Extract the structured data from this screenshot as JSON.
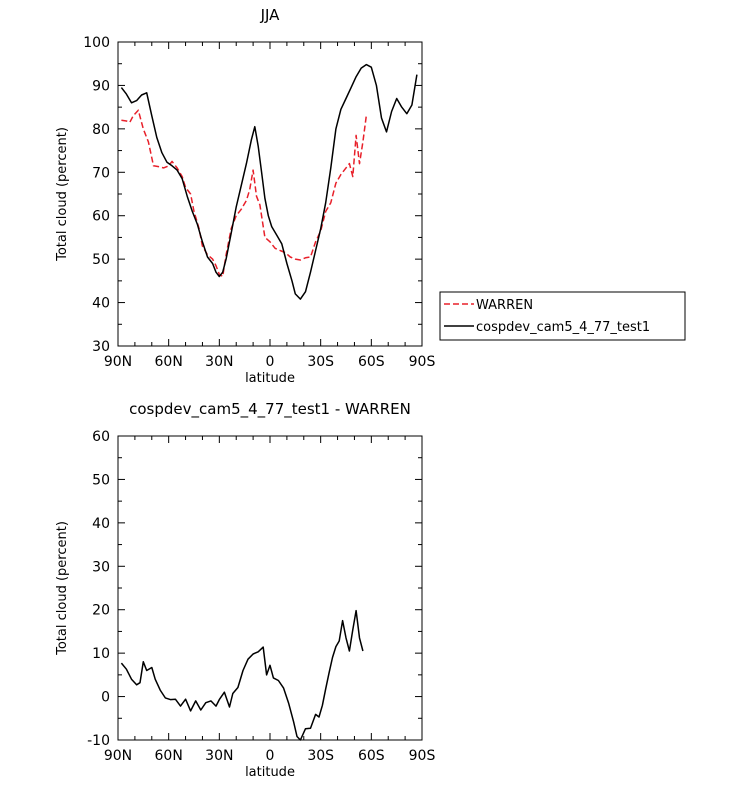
{
  "chart_data": [
    {
      "type": "line",
      "title": "JJA",
      "xlabel": "latitude",
      "ylabel": "Total cloud (percent)",
      "xlim": [
        -90,
        90
      ],
      "ylim": [
        30,
        100
      ],
      "x_ticks": [
        {
          "value": -90,
          "label": "90N"
        },
        {
          "value": -60,
          "label": "60N"
        },
        {
          "value": -30,
          "label": "30N"
        },
        {
          "value": 0,
          "label": "0"
        },
        {
          "value": 30,
          "label": "30S"
        },
        {
          "value": 60,
          "label": "60S"
        },
        {
          "value": 90,
          "label": "90S"
        }
      ],
      "y_ticks": [
        30,
        40,
        50,
        60,
        70,
        80,
        90,
        100
      ],
      "legend_position": "right",
      "series": [
        {
          "name": "WARREN",
          "color": "#e8202a",
          "dash": "dashed",
          "points": [
            [
              -88,
              82
            ],
            [
              -85,
              81.8
            ],
            [
              -83,
              81.5
            ],
            [
              -81,
              83
            ],
            [
              -78,
              84.3
            ],
            [
              -75,
              80
            ],
            [
              -72,
              77
            ],
            [
              -69,
              71.5
            ],
            [
              -66,
              71.3
            ],
            [
              -63,
              71
            ],
            [
              -60,
              71.5
            ],
            [
              -58,
              72.5
            ],
            [
              -55,
              71
            ],
            [
              -52,
              69
            ],
            [
              -50,
              66.5
            ],
            [
              -47,
              65
            ],
            [
              -45,
              61
            ],
            [
              -42,
              57
            ],
            [
              -40,
              53
            ],
            [
              -37,
              51
            ],
            [
              -34,
              50
            ],
            [
              -32,
              48.5
            ],
            [
              -30,
              46.5
            ],
            [
              -28,
              46
            ],
            [
              -26,
              51
            ],
            [
              -23,
              57
            ],
            [
              -20,
              60
            ],
            [
              -17,
              61.5
            ],
            [
              -14,
              63.5
            ],
            [
              -12,
              66
            ],
            [
              -10,
              70.5
            ],
            [
              -8,
              64.5
            ],
            [
              -6,
              62.5
            ],
            [
              -3,
              55
            ],
            [
              0,
              54
            ],
            [
              3,
              52.5
            ],
            [
              6,
              52
            ],
            [
              9,
              51.5
            ],
            [
              12,
              50.5
            ],
            [
              15,
              50
            ],
            [
              18,
              49.8
            ],
            [
              21,
              50.3
            ],
            [
              24,
              50.5
            ],
            [
              27,
              54
            ],
            [
              30,
              56.5
            ],
            [
              33,
              61
            ],
            [
              36,
              63
            ],
            [
              39,
              67.5
            ],
            [
              42,
              69.5
            ],
            [
              45,
              71
            ],
            [
              47,
              72
            ],
            [
              49,
              69
            ],
            [
              51,
              78.5
            ],
            [
              53,
              72
            ],
            [
              55,
              77
            ],
            [
              57,
              83
            ]
          ]
        },
        {
          "name": "cospdev_cam5_4_77_test1",
          "color": "#000000",
          "dash": "solid",
          "points": [
            [
              -88,
              89.5
            ],
            [
              -85,
              88
            ],
            [
              -82,
              86
            ],
            [
              -79,
              86.5
            ],
            [
              -76,
              87.8
            ],
            [
              -73,
              88.3
            ],
            [
              -70,
              83
            ],
            [
              -67,
              78
            ],
            [
              -64,
              74.5
            ],
            [
              -61,
              72.3
            ],
            [
              -58,
              71.5
            ],
            [
              -55,
              70.5
            ],
            [
              -52,
              68.5
            ],
            [
              -49,
              64.5
            ],
            [
              -46,
              61
            ],
            [
              -43,
              58
            ],
            [
              -40,
              54
            ],
            [
              -37,
              50.5
            ],
            [
              -34,
              49
            ],
            [
              -32,
              47
            ],
            [
              -30,
              46
            ],
            [
              -28,
              47
            ],
            [
              -26,
              50
            ],
            [
              -23,
              56
            ],
            [
              -20,
              62
            ],
            [
              -17,
              67
            ],
            [
              -14,
              72
            ],
            [
              -11,
              77.5
            ],
            [
              -9,
              80.5
            ],
            [
              -7,
              76
            ],
            [
              -5,
              70
            ],
            [
              -3,
              64
            ],
            [
              -1,
              60
            ],
            [
              1,
              57.5
            ],
            [
              4,
              55.5
            ],
            [
              7,
              53.5
            ],
            [
              10,
              49
            ],
            [
              13,
              45
            ],
            [
              15,
              42
            ],
            [
              18,
              40.8
            ],
            [
              21,
              42.5
            ],
            [
              24,
              47
            ],
            [
              27,
              52
            ],
            [
              30,
              57
            ],
            [
              33,
              63
            ],
            [
              36,
              71
            ],
            [
              39,
              80
            ],
            [
              42,
              84.5
            ],
            [
              45,
              87
            ],
            [
              48,
              89.5
            ],
            [
              51,
              92
            ],
            [
              54,
              94
            ],
            [
              57,
              94.8
            ],
            [
              60,
              94.2
            ],
            [
              63,
              90
            ],
            [
              66,
              82.5
            ],
            [
              69,
              79.3
            ],
            [
              72,
              84
            ],
            [
              75,
              87
            ],
            [
              78,
              85
            ],
            [
              81,
              83.5
            ],
            [
              84,
              85.5
            ],
            [
              87,
              92.5
            ]
          ]
        }
      ]
    },
    {
      "type": "line",
      "title": "cospdev_cam5_4_77_test1 - WARREN",
      "xlabel": "latitude",
      "ylabel": "Total cloud (percent)",
      "xlim": [
        -90,
        90
      ],
      "ylim": [
        -10,
        60
      ],
      "x_ticks": [
        {
          "value": -90,
          "label": "90N"
        },
        {
          "value": -60,
          "label": "60N"
        },
        {
          "value": -30,
          "label": "30N"
        },
        {
          "value": 0,
          "label": "0"
        },
        {
          "value": 30,
          "label": "30S"
        },
        {
          "value": 60,
          "label": "60S"
        },
        {
          "value": 90,
          "label": "90S"
        }
      ],
      "y_ticks": [
        -10,
        0,
        10,
        20,
        30,
        40,
        50,
        60
      ],
      "series": [
        {
          "color": "#000000",
          "dash": "solid",
          "points": [
            [
              -88,
              7.7
            ],
            [
              -85,
              6.3
            ],
            [
              -82,
              4
            ],
            [
              -79,
              2.7
            ],
            [
              -77,
              3.2
            ],
            [
              -75,
              8
            ],
            [
              -73,
              6
            ],
            [
              -70,
              6.7
            ],
            [
              -68,
              4
            ],
            [
              -65,
              1.5
            ],
            [
              -62,
              -0.3
            ],
            [
              -59,
              -0.7
            ],
            [
              -56,
              -0.6
            ],
            [
              -53,
              -2.2
            ],
            [
              -50,
              -0.6
            ],
            [
              -47,
              -3.3
            ],
            [
              -44,
              -1
            ],
            [
              -41,
              -3.1
            ],
            [
              -38,
              -1.4
            ],
            [
              -35,
              -1
            ],
            [
              -32,
              -2.2
            ],
            [
              -30,
              -0.7
            ],
            [
              -27,
              1
            ],
            [
              -24,
              -2.4
            ],
            [
              -22,
              0.7
            ],
            [
              -19,
              2.1
            ],
            [
              -16,
              6
            ],
            [
              -13,
              8.6
            ],
            [
              -10,
              9.8
            ],
            [
              -7,
              10.3
            ],
            [
              -4,
              11.4
            ],
            [
              -2,
              5
            ],
            [
              0,
              7.2
            ],
            [
              2,
              4.3
            ],
            [
              5,
              3.7
            ],
            [
              8,
              2
            ],
            [
              11,
              -1.5
            ],
            [
              14,
              -5.8
            ],
            [
              16,
              -9.2
            ],
            [
              18,
              -10
            ],
            [
              21,
              -7.4
            ],
            [
              24,
              -7.3
            ],
            [
              27,
              -4.1
            ],
            [
              29,
              -4.7
            ],
            [
              31,
              -2
            ],
            [
              33,
              1.8
            ],
            [
              35,
              5.5
            ],
            [
              37,
              9
            ],
            [
              39,
              11.5
            ],
            [
              41,
              12.8
            ],
            [
              43,
              17.5
            ],
            [
              45,
              13.5
            ],
            [
              47,
              10.5
            ],
            [
              49,
              15.4
            ],
            [
              51,
              19.8
            ],
            [
              53,
              13.5
            ],
            [
              55,
              10.5
            ]
          ]
        }
      ]
    }
  ]
}
